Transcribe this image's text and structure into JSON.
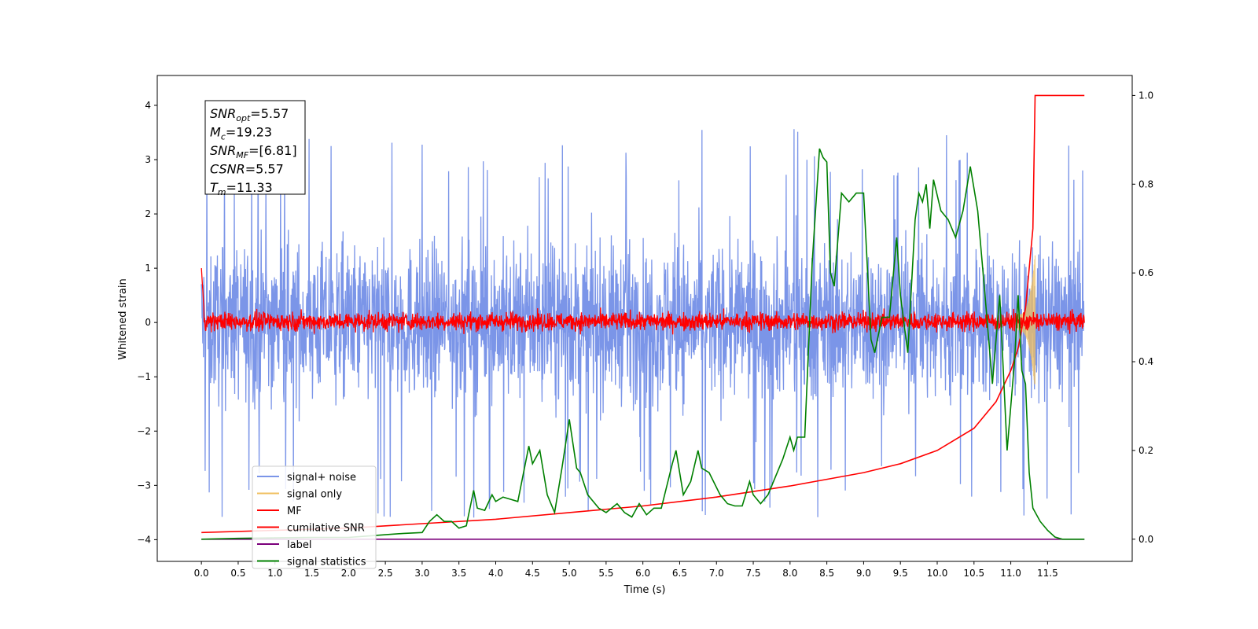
{
  "chart_data": {
    "type": "line",
    "xlabel": "Time (s)",
    "ylabel": "Whitened strain",
    "xlim": [
      -0.6,
      12.65
    ],
    "ylim": [
      -4.4,
      4.55
    ],
    "y2lim": [
      -0.05,
      1.045
    ],
    "x_ticks": [
      "0.0",
      "0.5",
      "1.0",
      "1.5",
      "2.0",
      "2.5",
      "3.0",
      "3.5",
      "4.0",
      "4.5",
      "5.0",
      "5.5",
      "6.0",
      "6.5",
      "7.0",
      "7.5",
      "8.0",
      "8.5",
      "9.0",
      "9.5",
      "10.0",
      "10.5",
      "11.0",
      "11.5"
    ],
    "y_ticks": [
      -4,
      -3,
      -2,
      -1,
      0,
      1,
      2,
      3,
      4
    ],
    "y_tick_labels": [
      "−4",
      "−3",
      "−2",
      "−1",
      "0",
      "1",
      "2",
      "3",
      "4"
    ],
    "y2_ticks": [
      0.0,
      0.2,
      0.4,
      0.6,
      0.8,
      1.0
    ],
    "y2_tick_labels": [
      "0.0",
      "0.2",
      "0.4",
      "0.6",
      "0.8",
      "1.0"
    ],
    "grid": false,
    "legend_placement": "lower-left",
    "annotation_lines": [
      {
        "var": "SNR",
        "sub": "opt",
        "value": "=5.57"
      },
      {
        "var": "M",
        "sub": "c",
        "value": "=19.23"
      },
      {
        "var": "SNR",
        "sub": "MF",
        "value": "=[6.81]"
      },
      {
        "var": "CSNR",
        "sub": "",
        "value": "=5.57"
      },
      {
        "var": "T",
        "sub": "m",
        "value": "=11.33"
      }
    ],
    "series": [
      {
        "name": "signal+ noise",
        "color": "#7b95e8",
        "axis": "left",
        "x_range": [
          0.0,
          12.0
        ],
        "y_band": [
          -3.9,
          4.15
        ]
      },
      {
        "name": "signal only",
        "color": "#f0c060",
        "axis": "left",
        "chirp_start": 11.1,
        "chirp_end": 11.33,
        "peak_amplitude": 1.1
      },
      {
        "name": "MF",
        "color": "#ff0000",
        "axis": "left",
        "x_range": [
          0.0,
          12.0
        ],
        "y_band": [
          -0.22,
          0.5
        ]
      },
      {
        "name": "cumilative SNR",
        "color": "#ff0000",
        "axis": "right",
        "x": [
          0.0,
          1.0,
          2.0,
          3.0,
          4.0,
          5.0,
          6.0,
          7.0,
          8.0,
          8.5,
          9.0,
          9.5,
          10.0,
          10.5,
          10.8,
          11.0,
          11.1,
          11.2,
          11.3,
          11.33,
          12.0
        ],
        "y": [
          0.015,
          0.02,
          0.025,
          0.035,
          0.045,
          0.06,
          0.075,
          0.095,
          0.12,
          0.135,
          0.15,
          0.17,
          0.2,
          0.25,
          0.31,
          0.38,
          0.43,
          0.52,
          0.7,
          1.0,
          1.0
        ]
      },
      {
        "name": "label",
        "color": "#7b007b",
        "axis": "right",
        "x": [
          0.0,
          12.0
        ],
        "y": [
          0.0,
          0.0
        ]
      },
      {
        "name": "signal statistics",
        "color": "#008000",
        "axis": "right",
        "x": [
          0.0,
          0.5,
          1.0,
          1.5,
          2.0,
          2.25,
          2.5,
          2.75,
          3.0,
          3.1,
          3.2,
          3.3,
          3.4,
          3.5,
          3.6,
          3.7,
          3.75,
          3.85,
          3.95,
          4.0,
          4.1,
          4.2,
          4.3,
          4.45,
          4.5,
          4.6,
          4.7,
          4.8,
          4.9,
          5.0,
          5.1,
          5.15,
          5.25,
          5.4,
          5.5,
          5.65,
          5.75,
          5.85,
          5.95,
          6.05,
          6.15,
          6.25,
          6.4,
          6.45,
          6.55,
          6.65,
          6.75,
          6.8,
          6.9,
          7.05,
          7.15,
          7.25,
          7.35,
          7.45,
          7.5,
          7.6,
          7.7,
          7.8,
          7.9,
          8.0,
          8.05,
          8.1,
          8.2,
          8.3,
          8.4,
          8.45,
          8.5,
          8.55,
          8.6,
          8.7,
          8.8,
          8.9,
          9.0,
          9.1,
          9.15,
          9.25,
          9.35,
          9.45,
          9.5,
          9.6,
          9.7,
          9.75,
          9.8,
          9.85,
          9.9,
          9.95,
          10.05,
          10.15,
          10.25,
          10.35,
          10.45,
          10.55,
          10.65,
          10.75,
          10.85,
          10.95,
          11.05,
          11.1,
          11.15,
          11.2,
          11.25,
          11.3,
          11.4,
          11.5,
          11.6,
          11.7,
          11.8,
          12.0
        ],
        "y": [
          0.0,
          0.002,
          0.003,
          0.004,
          0.004,
          0.007,
          0.01,
          0.013,
          0.015,
          0.04,
          0.055,
          0.04,
          0.04,
          0.025,
          0.03,
          0.11,
          0.07,
          0.065,
          0.1,
          0.085,
          0.095,
          0.09,
          0.085,
          0.21,
          0.17,
          0.2,
          0.1,
          0.06,
          0.16,
          0.27,
          0.16,
          0.15,
          0.1,
          0.07,
          0.06,
          0.08,
          0.06,
          0.05,
          0.08,
          0.055,
          0.07,
          0.07,
          0.17,
          0.2,
          0.1,
          0.13,
          0.2,
          0.16,
          0.15,
          0.1,
          0.08,
          0.075,
          0.075,
          0.13,
          0.1,
          0.08,
          0.1,
          0.14,
          0.18,
          0.23,
          0.2,
          0.23,
          0.23,
          0.62,
          0.88,
          0.86,
          0.85,
          0.6,
          0.57,
          0.78,
          0.76,
          0.78,
          0.78,
          0.45,
          0.42,
          0.5,
          0.5,
          0.68,
          0.55,
          0.42,
          0.72,
          0.78,
          0.76,
          0.8,
          0.7,
          0.81,
          0.74,
          0.72,
          0.68,
          0.74,
          0.84,
          0.74,
          0.55,
          0.35,
          0.55,
          0.2,
          0.4,
          0.55,
          0.38,
          0.35,
          0.15,
          0.07,
          0.04,
          0.02,
          0.005,
          0.0,
          0.0,
          0.0
        ]
      }
    ]
  }
}
